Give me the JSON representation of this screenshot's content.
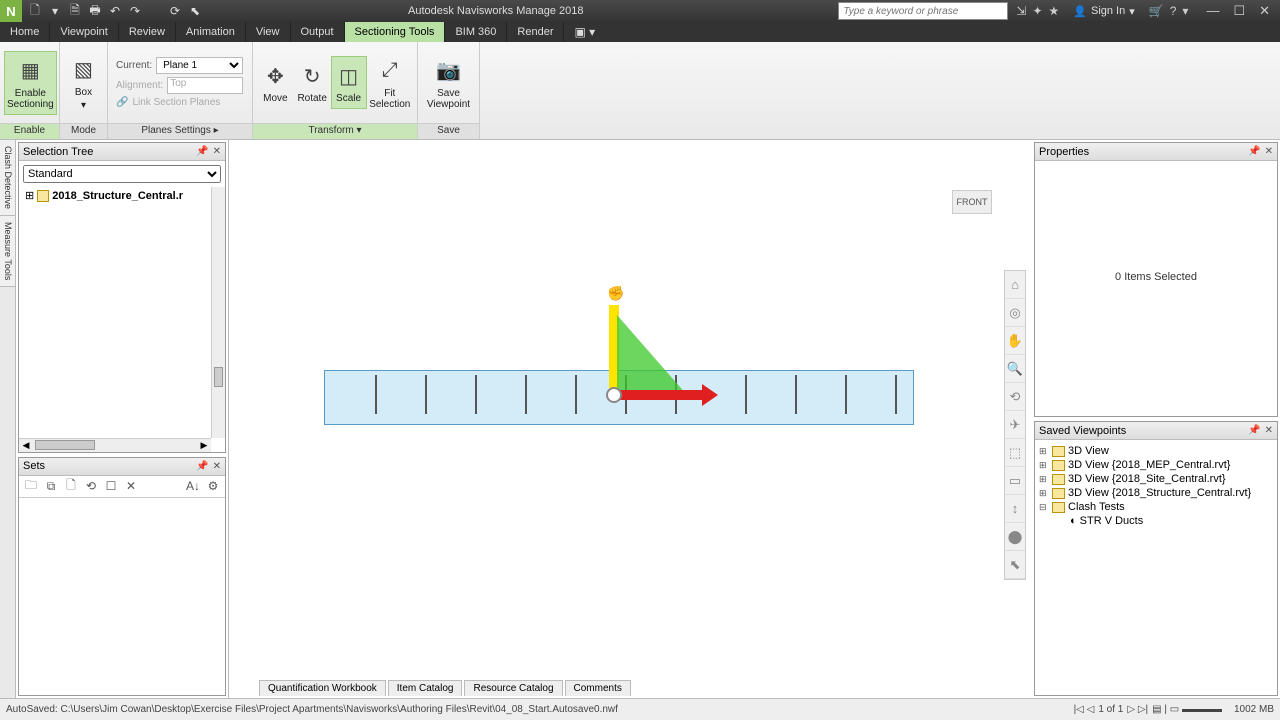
{
  "app": {
    "title": "Autodesk Navisworks Manage 2018",
    "logo": "N"
  },
  "qat": [
    "🗋",
    "▾",
    "🗎",
    "🖶",
    "↶",
    "↷",
    "",
    "⟳",
    "⬉"
  ],
  "search_placeholder": "Type a keyword or phrase",
  "title_right_icons": [
    "⇲",
    "✦",
    "★",
    "👤"
  ],
  "signin": "Sign In",
  "cart": "🛒",
  "help": "?",
  "win_min": "—",
  "win_max": "☐",
  "win_close": "✕",
  "menu": {
    "items": [
      "Home",
      "Viewpoint",
      "Review",
      "Animation",
      "View",
      "Output",
      "Sectioning Tools",
      "BIM 360",
      "Render"
    ],
    "active": "Sectioning Tools",
    "camera": "▣ ▾"
  },
  "ribbon": {
    "enable": {
      "label": "Enable",
      "btn": "Enable\nSectioning",
      "glyph": "▦"
    },
    "mode": {
      "label": "Mode",
      "btn": "Box",
      "glyph": "▧",
      "drop": "▾"
    },
    "planes": {
      "label": "Planes Settings",
      "current_lbl": "Current:",
      "current_val": "Plane 1",
      "align_lbl": "Alignment:",
      "align_val": "Top",
      "link": "Link Section Planes",
      "arrow": "▸"
    },
    "transform": {
      "label": "Transform",
      "move": "Move",
      "move_g": "✥",
      "rotate": "Rotate",
      "rotate_g": "↻",
      "scale": "Scale",
      "scale_g": "◫",
      "fit": "Fit\nSelection",
      "fit_g": "⤢",
      "arrow": "▾"
    },
    "save": {
      "label": "Save",
      "btn": "Save\nViewpoint",
      "glyph": "📷"
    }
  },
  "leftrail": [
    "Clash Detective",
    "Measure Tools"
  ],
  "seltree": {
    "title": "Selection Tree",
    "dropdown": "Standard",
    "root": "2018_Structure_Central.r",
    "pin": "📌",
    "close": "✕",
    "expand": "⊞",
    "arrow": "˄"
  },
  "sets": {
    "title": "Sets",
    "pin": "📌",
    "close": "✕",
    "icons": [
      "🗀",
      "⧉",
      "🗋",
      "⟲",
      "☐",
      "✕",
      "",
      "A↓",
      "⚙"
    ]
  },
  "viewcube": "FRONT",
  "navicons": [
    "⌂",
    "◎",
    "✋",
    "🔍",
    "⟲",
    "✈",
    "⬚",
    "▭",
    "↕",
    "⬤",
    "⬉"
  ],
  "model": {
    "bg": "#d4ecf7",
    "border": "#5a9bc4",
    "cols": [
      40,
      90,
      140,
      190,
      240,
      290,
      340,
      410,
      460,
      510,
      560
    ]
  },
  "gizmo": {
    "y": "#ffe400",
    "x": "#e02020",
    "plane": "rgba(60,200,40,0.75)",
    "cursor": "✊"
  },
  "bottomtabs": [
    "Quantification Workbook",
    "Item Catalog",
    "Resource Catalog",
    "Comments"
  ],
  "props": {
    "title": "Properties",
    "msg": "0 Items Selected",
    "pin": "📌",
    "close": "✕"
  },
  "saved": {
    "title": "Saved Viewpoints",
    "pin": "📌",
    "close": "✕",
    "items": [
      {
        "t": "3D View",
        "plus": "⊞"
      },
      {
        "t": "3D View {2018_MEP_Central.rvt}",
        "plus": "⊞"
      },
      {
        "t": "3D View {2018_Site_Central.rvt}",
        "plus": "⊞"
      },
      {
        "t": "3D View {2018_Structure_Central.rvt}",
        "plus": "⊞"
      },
      {
        "t": "Clash Tests",
        "plus": "⊟",
        "open": true
      }
    ],
    "child": "STR V Ducts",
    "child_icon": "◐"
  },
  "status": {
    "text": "AutoSaved: C:\\Users\\Jim Cowan\\Desktop\\Exercise Files\\Project Apartments\\Navisworks\\Authoring Files\\Revit\\04_08_Start.Autosave0.nwf",
    "pager_prev": "|◁ ◁",
    "pager_txt": "1 of 1",
    "pager_next": "▷ ▷|",
    "icons": "▤ | ▭ ▬▬▬▬",
    "mem": "1002 MB"
  },
  "colors": {
    "accent": "#b9e0a5",
    "ribbon_active": "#c8e6b8"
  }
}
